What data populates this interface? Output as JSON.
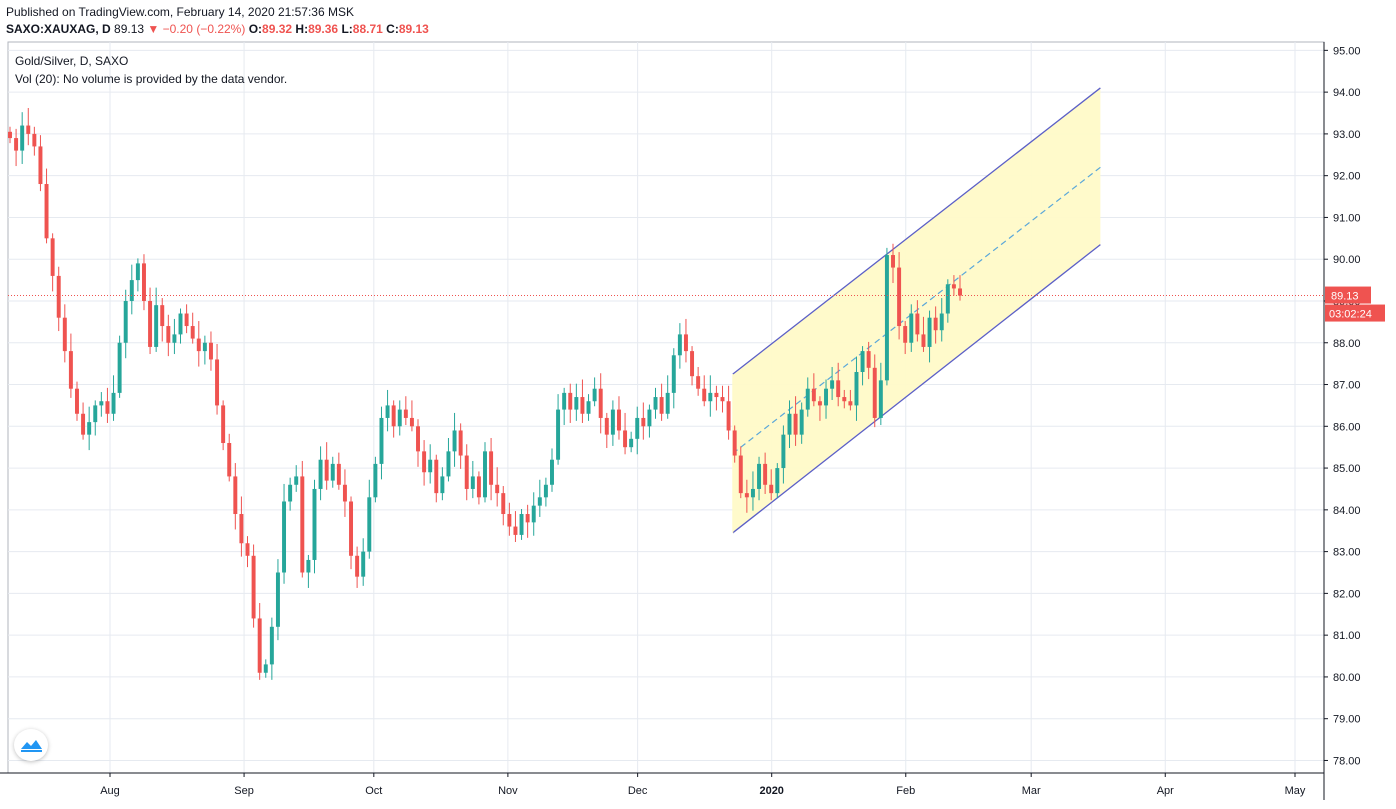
{
  "header": {
    "published": "Published on TradingView.com, February 14, 2020 21:57:36 MSK",
    "symbol": "SAXO:XAUXAG, D",
    "last": "89.13",
    "change": "▼ −0.20 (−0.22%)",
    "o_label": "O:",
    "o": "89.32",
    "h_label": "H:",
    "h": "89.36",
    "l_label": "L:",
    "l": "88.71",
    "c_label": "C:",
    "c": "89.13"
  },
  "legend": {
    "title": "Gold/Silver, D, SAXO",
    "volume_note": "Vol (20): No volume is provided by the data vendor."
  },
  "price_tag": {
    "price": "89.13",
    "countdown": "03:02:24"
  },
  "colors": {
    "up": "#26a69a",
    "down": "#ef5350",
    "channel": "#5b5fc7",
    "channel_fill": "#fffac8",
    "midline": "#5aa7d9",
    "grid": "#e6eaf0"
  },
  "chart_data": {
    "type": "candlestick",
    "ylim": [
      77.7,
      95.2
    ],
    "y_ticks": [
      "95.00",
      "94.00",
      "93.00",
      "92.00",
      "91.00",
      "90.00",
      "89.00",
      "88.00",
      "87.00",
      "86.00",
      "85.00",
      "84.00",
      "83.00",
      "82.00",
      "81.00",
      "80.00",
      "79.00",
      "78.00"
    ],
    "x_ticks": [
      "Aug",
      "Sep",
      "Oct",
      "Nov",
      "Dec",
      "2020",
      "Feb",
      "Mar",
      "Apr",
      "May"
    ],
    "last_price": 89.13,
    "channel": {
      "upper": [
        [
          "2019-12-23",
          87.25
        ],
        [
          "2020-03-17",
          94.1
        ]
      ],
      "middle": [
        [
          "2019-12-23",
          85.35
        ],
        [
          "2020-03-17",
          92.2
        ]
      ],
      "lower": [
        [
          "2019-12-23",
          83.45
        ],
        [
          "2020-03-17",
          90.35
        ]
      ]
    },
    "closes": [
      92.9,
      92.6,
      93.2,
      93.0,
      92.7,
      91.8,
      90.5,
      89.6,
      88.6,
      87.8,
      86.9,
      86.3,
      85.8,
      86.1,
      86.5,
      86.6,
      86.3,
      86.8,
      88.0,
      89.0,
      89.5,
      89.9,
      89.0,
      87.9,
      88.9,
      88.4,
      88.0,
      88.2,
      88.7,
      88.4,
      88.1,
      87.8,
      88.0,
      87.6,
      86.5,
      85.6,
      84.8,
      83.9,
      83.2,
      82.9,
      81.4,
      80.1,
      80.3,
      81.2,
      82.5,
      84.2,
      84.6,
      84.8,
      82.5,
      82.8,
      84.5,
      85.2,
      84.7,
      85.1,
      84.6,
      84.2,
      82.9,
      82.4,
      83.0,
      84.3,
      85.1,
      86.2,
      86.5,
      86.0,
      86.4,
      86.2,
      86.0,
      85.4,
      84.9,
      85.2,
      84.4,
      84.8,
      85.4,
      85.9,
      85.3,
      84.5,
      84.8,
      84.3,
      85.4,
      84.6,
      84.4,
      83.9,
      83.6,
      83.4,
      83.9,
      83.7,
      84.1,
      84.3,
      84.6,
      85.2,
      86.4,
      86.8,
      86.4,
      86.7,
      86.3,
      86.6,
      86.9,
      86.2,
      85.8,
      86.4,
      85.9,
      85.5,
      85.7,
      86.2,
      86.0,
      86.4,
      86.7,
      86.3,
      86.8,
      87.7,
      88.2,
      87.8,
      87.2,
      86.9,
      86.6,
      86.8,
      86.7,
      86.6,
      85.9,
      85.3,
      84.4,
      84.3,
      84.5,
      85.1,
      84.6,
      84.4,
      85.0,
      85.8,
      86.3,
      85.8,
      86.4,
      86.9,
      86.6,
      86.5,
      86.9,
      87.1,
      86.7,
      86.6,
      86.5,
      87.3,
      87.8,
      87.4,
      86.2,
      87.1,
      90.1,
      89.8,
      88.4,
      88.0,
      88.7,
      88.2,
      87.9,
      88.6,
      88.3,
      88.7,
      89.4,
      89.3,
      89.13
    ]
  }
}
